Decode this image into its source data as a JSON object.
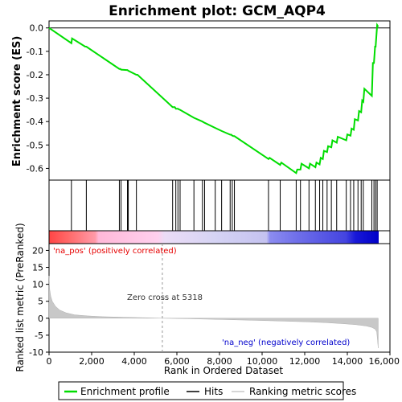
{
  "chart_data": [
    {
      "type": "line",
      "title": "Enrichment plot: GCM_AQP4",
      "ylabel": "Enrichment score (ES)",
      "ylim": [
        -0.65,
        0.03
      ],
      "xlim": [
        0,
        16000
      ],
      "y_ticks": [
        "0.0",
        "-0.1",
        "-0.2",
        "-0.3",
        "-0.4",
        "-0.5",
        "-0.6"
      ],
      "y_tick_values": [
        0.0,
        -0.1,
        -0.2,
        -0.3,
        -0.4,
        -0.5,
        -0.6
      ],
      "line_color": "#00dd00",
      "series": [
        {
          "name": "Enrichment profile",
          "x": [
            0,
            1050,
            1080,
            1700,
            1750,
            3300,
            3350,
            3380,
            3650,
            3680,
            3720,
            4100,
            4150,
            5800,
            5900,
            5950,
            6050,
            6100,
            6150,
            6800,
            7200,
            7300,
            7800,
            8100,
            8500,
            8550,
            8600,
            8650,
            8700,
            10300,
            10350,
            10850,
            10900,
            11600,
            11650,
            11800,
            11850,
            12200,
            12250,
            12500,
            12550,
            12700,
            12750,
            12850,
            12900,
            13050,
            13100,
            13250,
            13300,
            13500,
            13550,
            13950,
            14000,
            14150,
            14200,
            14300,
            14350,
            14500,
            14550,
            14650,
            14700,
            14750,
            14800,
            15150,
            15200,
            15250,
            15300,
            15330,
            15400,
            15450
          ],
          "y": [
            0.0,
            -0.065,
            -0.045,
            -0.08,
            -0.08,
            -0.175,
            -0.175,
            -0.178,
            -0.18,
            -0.18,
            -0.183,
            -0.2,
            -0.2,
            -0.338,
            -0.338,
            -0.345,
            -0.345,
            -0.348,
            -0.35,
            -0.384,
            -0.4,
            -0.405,
            -0.427,
            -0.44,
            -0.456,
            -0.456,
            -0.46,
            -0.462,
            -0.462,
            -0.56,
            -0.555,
            -0.585,
            -0.575,
            -0.62,
            -0.605,
            -0.605,
            -0.58,
            -0.6,
            -0.58,
            -0.595,
            -0.575,
            -0.583,
            -0.555,
            -0.56,
            -0.525,
            -0.53,
            -0.505,
            -0.51,
            -0.48,
            -0.49,
            -0.465,
            -0.48,
            -0.455,
            -0.46,
            -0.43,
            -0.435,
            -0.39,
            -0.395,
            -0.355,
            -0.36,
            -0.31,
            -0.315,
            -0.26,
            -0.29,
            -0.15,
            -0.15,
            -0.08,
            -0.08,
            0.012,
            0.005
          ]
        }
      ]
    },
    {
      "type": "scatter",
      "name": "hits",
      "xlim": [
        0,
        16000
      ],
      "series": [
        {
          "name": "Hits",
          "x": [
            1050,
            1750,
            3300,
            3380,
            3680,
            3720,
            4100,
            5800,
            5950,
            6050,
            6150,
            6800,
            7200,
            7300,
            7800,
            8100,
            8500,
            8600,
            8700,
            10300,
            10850,
            11600,
            11800,
            12200,
            12500,
            12700,
            12850,
            13050,
            13250,
            13500,
            13950,
            14150,
            14300,
            14500,
            14650,
            14750,
            15150,
            15250,
            15330,
            15400
          ]
        }
      ]
    },
    {
      "type": "area",
      "ylabel": "Ranked list metric (PreRanked)",
      "xlabel": "Rank in Ordered Dataset",
      "ylim": [
        -10,
        22
      ],
      "xlim": [
        0,
        16000
      ],
      "y_ticks": [
        "20",
        "15",
        "10",
        "5",
        "0",
        "-5",
        "-10"
      ],
      "y_tick_values": [
        20,
        15,
        10,
        5,
        0,
        -5,
        -10
      ],
      "x_ticks": [
        "0",
        "2,000",
        "4,000",
        "6,000",
        "8,000",
        "10,000",
        "12,000",
        "14,000",
        "16,000"
      ],
      "x_tick_values": [
        0,
        2000,
        4000,
        6000,
        8000,
        10000,
        12000,
        14000,
        16000
      ],
      "zero_cross": 5318,
      "annotations": {
        "pos": "'na_pos' (positively correlated)",
        "zero": "Zero cross at 5318",
        "neg": "'na_neg' (negatively correlated)"
      },
      "series": [
        {
          "name": "Ranking metric scores",
          "x": [
            0,
            30,
            80,
            150,
            300,
            500,
            800,
            1200,
            1800,
            2500,
            3500,
            4500,
            5318,
            6500,
            8000,
            9500,
            11000,
            12000,
            13000,
            13800,
            14400,
            14900,
            15150,
            15300,
            15380,
            15420,
            15450
          ],
          "values": [
            12.5,
            8.5,
            6.5,
            5.0,
            3.5,
            2.4,
            1.6,
            1.0,
            0.7,
            0.45,
            0.28,
            0.15,
            0.0,
            -0.15,
            -0.35,
            -0.6,
            -0.85,
            -1.05,
            -1.3,
            -1.6,
            -1.9,
            -2.3,
            -2.7,
            -3.2,
            -4.0,
            -6.5,
            -8.8
          ]
        }
      ]
    }
  ],
  "legend": {
    "items": [
      {
        "label": "Enrichment profile",
        "color": "#00dd00"
      },
      {
        "label": "Hits",
        "color": "#000000"
      },
      {
        "label": "Ranking metric scores",
        "color": "#c8c8c8"
      }
    ]
  },
  "colors": {
    "pos_annotation": "#e60000",
    "neg_annotation": "#0000cc",
    "metric_fill": "#c8c8c8"
  }
}
